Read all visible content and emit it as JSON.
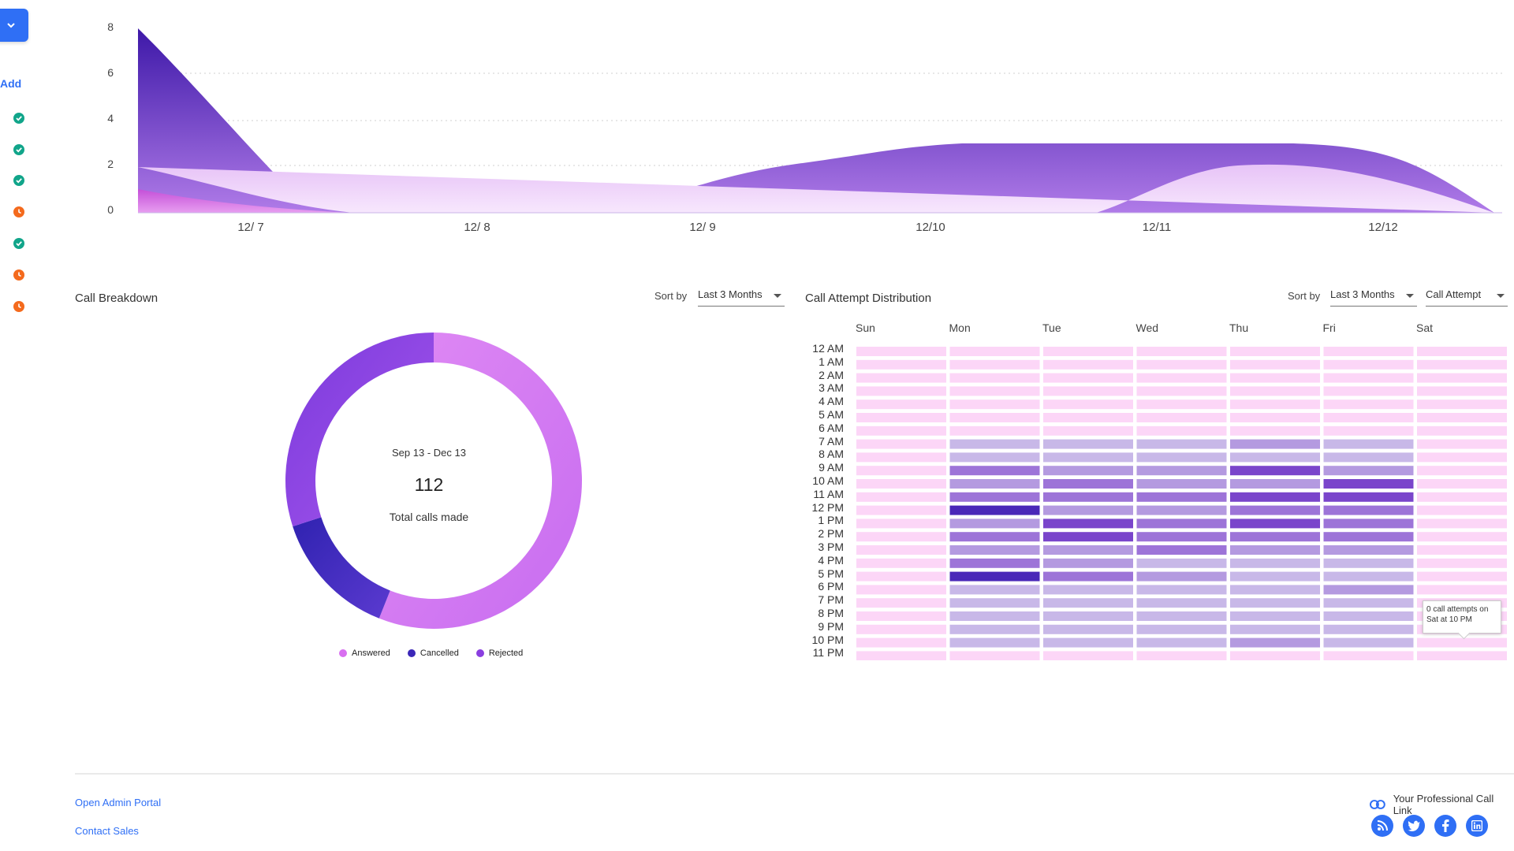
{
  "sidebar": {
    "dropdown_icon": "chevron-down-icon",
    "add_label": "Add",
    "statuses": [
      "done",
      "done",
      "done",
      "pending",
      "done",
      "pending",
      "pending"
    ]
  },
  "top_chart": {
    "y_ticks": [
      "8",
      "6",
      "4",
      "2",
      "0"
    ],
    "x_ticks": [
      "12/ 7",
      "12/ 8",
      "12/ 9",
      "12/10",
      "12/11",
      "12/12"
    ]
  },
  "call_breakdown": {
    "title": "Call Breakdown",
    "sort_label": "Sort by",
    "sort_value": "Last 3 Months",
    "date_range": "Sep 13 - Dec 13",
    "total": "112",
    "total_label": "Total calls made",
    "legend": [
      {
        "label": "Answered",
        "color": "#d86ff0"
      },
      {
        "label": "Cancelled",
        "color": "#3b27b8"
      },
      {
        "label": "Rejected",
        "color": "#8a3ee0"
      }
    ]
  },
  "distribution": {
    "title": "Call Attempt Distribution",
    "sort_label": "Sort by",
    "sort_value": "Last 3 Months",
    "metric_value": "Call Attempt",
    "days": [
      "Sun",
      "Mon",
      "Tue",
      "Wed",
      "Thu",
      "Fri",
      "Sat"
    ],
    "hours": [
      "12 AM",
      "1 AM",
      "2 AM",
      "3 AM",
      "4 AM",
      "5 AM",
      "6 AM",
      "7 AM",
      "8 AM",
      "9 AM",
      "10 AM",
      "11 AM",
      "12 PM",
      "1 PM",
      "2 PM",
      "3 PM",
      "4 PM",
      "5 PM",
      "6 PM",
      "7 PM",
      "8 PM",
      "9 PM",
      "10 PM",
      "11 PM"
    ],
    "tooltip_line1": "0 call attempts on",
    "tooltip_line2": "Sat at 10 PM"
  },
  "chart_data": [
    {
      "type": "area",
      "x": [
        "12/ 7",
        "12/ 8",
        "12/ 9",
        "12/10",
        "12/11",
        "12/12"
      ],
      "ylim": [
        0,
        8
      ],
      "grid": true,
      "series": [
        {
          "values": [
            8,
            0,
            0,
            3,
            3,
            0
          ]
        },
        {
          "values": [
            2,
            0,
            0,
            0,
            2,
            0
          ]
        },
        {
          "values": [
            1,
            0,
            0,
            0,
            0,
            0
          ]
        }
      ]
    },
    {
      "type": "pie",
      "title": "Sep 13 - Dec 13",
      "categories": [
        "Answered",
        "Cancelled",
        "Rejected"
      ],
      "values": [
        0.56,
        0.14,
        0.3
      ]
    },
    {
      "type": "heatmap",
      "x": [
        "Sun",
        "Mon",
        "Tue",
        "Wed",
        "Thu",
        "Fri",
        "Sat"
      ],
      "y": [
        "12 AM",
        "1 AM",
        "2 AM",
        "3 AM",
        "4 AM",
        "5 AM",
        "6 AM",
        "7 AM",
        "8 AM",
        "9 AM",
        "10 AM",
        "11 AM",
        "12 PM",
        "1 PM",
        "2 PM",
        "3 PM",
        "4 PM",
        "5 PM",
        "6 PM",
        "7 PM",
        "8 PM",
        "9 PM",
        "10 PM",
        "11 PM"
      ],
      "values": [
        [
          0,
          0,
          0,
          0,
          0,
          0,
          0
        ],
        [
          0,
          0,
          0,
          0,
          0,
          0,
          0
        ],
        [
          0,
          0,
          0,
          0,
          0,
          0,
          0
        ],
        [
          0,
          0,
          0,
          0,
          0,
          0,
          0
        ],
        [
          0,
          0,
          0,
          0,
          0,
          0,
          0
        ],
        [
          0,
          0,
          0,
          0,
          0,
          0,
          0
        ],
        [
          0,
          0,
          0,
          0,
          0,
          0,
          0
        ],
        [
          0,
          1,
          1,
          1,
          2,
          1,
          0
        ],
        [
          0,
          1,
          1,
          1,
          1,
          1,
          0
        ],
        [
          0,
          3,
          2,
          2,
          4,
          2,
          0
        ],
        [
          0,
          2,
          3,
          2,
          2,
          4,
          0
        ],
        [
          0,
          3,
          3,
          3,
          4,
          4,
          0
        ],
        [
          0,
          5,
          2,
          2,
          3,
          3,
          0
        ],
        [
          0,
          2,
          4,
          3,
          4,
          3,
          0
        ],
        [
          0,
          3,
          4,
          3,
          3,
          3,
          0
        ],
        [
          0,
          2,
          2,
          3,
          2,
          2,
          0
        ],
        [
          0,
          3,
          2,
          1,
          1,
          1,
          0
        ],
        [
          0,
          5,
          3,
          2,
          1,
          1,
          0
        ],
        [
          0,
          1,
          1,
          1,
          1,
          2,
          0
        ],
        [
          0,
          1,
          1,
          1,
          1,
          1,
          0
        ],
        [
          0,
          1,
          1,
          1,
          1,
          1,
          0
        ],
        [
          0,
          1,
          1,
          1,
          1,
          1,
          0
        ],
        [
          0,
          1,
          1,
          1,
          2,
          1,
          0
        ],
        [
          0,
          0,
          0,
          0,
          0,
          0,
          0
        ]
      ]
    }
  ],
  "footer": {
    "admin_link": "Open Admin Portal",
    "sales_link": "Contact Sales",
    "call_link": "Your Professional Call Link",
    "link_icon": "link-icon",
    "social_icons": [
      "rss-icon",
      "twitter-icon",
      "facebook-icon",
      "linkedin-icon"
    ]
  },
  "colors": {
    "accent": "#2f6ff5",
    "ok": "#11a58a",
    "pending": "#f46a1d"
  }
}
